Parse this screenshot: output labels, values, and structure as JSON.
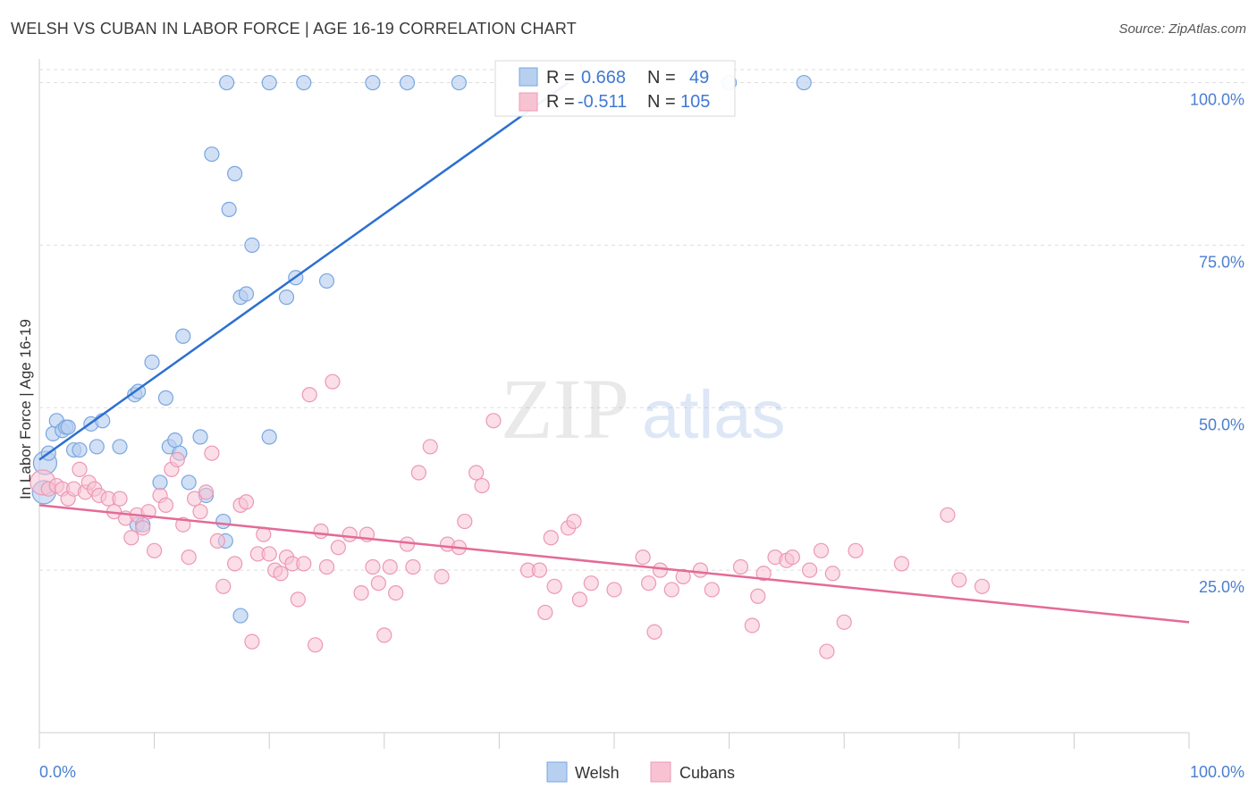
{
  "header": {
    "title": "WELSH VS CUBAN IN LABOR FORCE | AGE 16-19 CORRELATION CHART",
    "source": "Source: ZipAtlas.com"
  },
  "watermark": {
    "zip": "ZIP",
    "atlas": "atlas"
  },
  "colors": {
    "welsh_fill": "#b8d0f0",
    "welsh_stroke": "#7aa6e0",
    "welsh_line": "#2c6fd1",
    "cubans_fill": "#f7c3d3",
    "cubans_stroke": "#ec98b4",
    "cubans_line": "#e46a98",
    "axis_text": "#4a7fd0",
    "grid": "#dedede"
  },
  "legend": {
    "welsh": {
      "r_label": "R =",
      "r_value": "0.668",
      "n_label": "N =",
      "n_value": "49"
    },
    "cubans": {
      "r_label": "R =",
      "r_value": "-0.511",
      "n_label": "N =",
      "n_value": "105"
    }
  },
  "chart_data": {
    "type": "scatter",
    "title": "WELSH VS CUBAN IN LABOR FORCE | AGE 16-19 CORRELATION CHART",
    "xlabel": "",
    "ylabel": "In Labor Force | Age 16-19",
    "xlim": [
      0,
      100
    ],
    "ylim": [
      0,
      102
    ],
    "x_tick_labels": [
      "0.0%",
      "100.0%"
    ],
    "y_ticks": [
      25,
      50,
      75,
      100
    ],
    "y_tick_labels": [
      "25.0%",
      "50.0%",
      "75.0%",
      "100.0%"
    ],
    "grid": true,
    "legend_position": "top-center",
    "series": [
      {
        "name": "Welsh",
        "r": 0.668,
        "n": 49,
        "trend": {
          "x": [
            0,
            46
          ],
          "y": [
            42,
            100
          ]
        },
        "points": [
          [
            0.4,
            37
          ],
          [
            0.5,
            41.5
          ],
          [
            0.8,
            43
          ],
          [
            1.2,
            46
          ],
          [
            1.5,
            48
          ],
          [
            2.0,
            46.5
          ],
          [
            2.3,
            47
          ],
          [
            2.5,
            47
          ],
          [
            3.0,
            43.5
          ],
          [
            3.5,
            43.5
          ],
          [
            4.5,
            47.5
          ],
          [
            5.0,
            44
          ],
          [
            5.5,
            48
          ],
          [
            7.0,
            44
          ],
          [
            8.3,
            52
          ],
          [
            8.6,
            52.5
          ],
          [
            8.5,
            32
          ],
          [
            9.0,
            32
          ],
          [
            9.8,
            57
          ],
          [
            10.5,
            38.5
          ],
          [
            11.0,
            51.5
          ],
          [
            11.3,
            44
          ],
          [
            11.8,
            45
          ],
          [
            12.2,
            43
          ],
          [
            12.5,
            61
          ],
          [
            13.0,
            38.5
          ],
          [
            14.0,
            45.5
          ],
          [
            14.5,
            36.5
          ],
          [
            15.0,
            89
          ],
          [
            16.0,
            32.5
          ],
          [
            16.2,
            29.5
          ],
          [
            16.5,
            80.5
          ],
          [
            17.0,
            86
          ],
          [
            17.5,
            67
          ],
          [
            18.0,
            67.5
          ],
          [
            20.0,
            45.5
          ],
          [
            21.5,
            67
          ],
          [
            22.3,
            70
          ],
          [
            25.0,
            69.5
          ],
          [
            18.5,
            75
          ],
          [
            16.3,
            100
          ],
          [
            20.0,
            100
          ],
          [
            23.0,
            100
          ],
          [
            29.0,
            100
          ],
          [
            32.0,
            100
          ],
          [
            36.5,
            100
          ],
          [
            60.0,
            100
          ],
          [
            66.5,
            100
          ],
          [
            17.5,
            18
          ]
        ]
      },
      {
        "name": "Cubans",
        "r": -0.511,
        "n": 105,
        "trend": {
          "x": [
            0,
            100
          ],
          "y": [
            35,
            17
          ]
        },
        "points": [
          [
            0.3,
            38.5
          ],
          [
            0.8,
            37.5
          ],
          [
            1.5,
            38
          ],
          [
            2.0,
            37.5
          ],
          [
            2.5,
            36
          ],
          [
            3.0,
            37.5
          ],
          [
            3.5,
            40.5
          ],
          [
            4.0,
            37
          ],
          [
            4.3,
            38.5
          ],
          [
            4.8,
            37.5
          ],
          [
            5.2,
            36.5
          ],
          [
            6.0,
            36
          ],
          [
            6.5,
            34
          ],
          [
            7.0,
            36
          ],
          [
            7.5,
            33
          ],
          [
            8.0,
            30
          ],
          [
            8.5,
            33.5
          ],
          [
            9.0,
            31.5
          ],
          [
            9.5,
            34
          ],
          [
            10.0,
            28
          ],
          [
            10.5,
            36.5
          ],
          [
            11.0,
            35
          ],
          [
            11.5,
            40.5
          ],
          [
            12.0,
            42
          ],
          [
            12.5,
            32
          ],
          [
            13.0,
            27
          ],
          [
            13.5,
            36
          ],
          [
            14.0,
            34
          ],
          [
            14.5,
            37
          ],
          [
            15.0,
            43
          ],
          [
            15.5,
            29.5
          ],
          [
            16.0,
            22.5
          ],
          [
            17.0,
            26
          ],
          [
            17.5,
            35
          ],
          [
            18.0,
            35.5
          ],
          [
            18.5,
            14
          ],
          [
            19.0,
            27.5
          ],
          [
            19.5,
            30.5
          ],
          [
            20.0,
            27.5
          ],
          [
            20.5,
            25
          ],
          [
            21.0,
            24.5
          ],
          [
            21.5,
            27
          ],
          [
            22.0,
            26
          ],
          [
            22.5,
            20.5
          ],
          [
            23.0,
            26
          ],
          [
            23.5,
            52
          ],
          [
            24.0,
            13.5
          ],
          [
            24.5,
            31
          ],
          [
            25.0,
            25.5
          ],
          [
            25.5,
            54
          ],
          [
            26.0,
            28.5
          ],
          [
            27.0,
            30.5
          ],
          [
            28.0,
            21.5
          ],
          [
            28.5,
            30.5
          ],
          [
            29.0,
            25.5
          ],
          [
            29.5,
            23
          ],
          [
            30.0,
            15
          ],
          [
            30.5,
            25.5
          ],
          [
            31.0,
            21.5
          ],
          [
            32.0,
            29
          ],
          [
            32.5,
            25.5
          ],
          [
            33.0,
            40
          ],
          [
            34.0,
            44
          ],
          [
            35.0,
            24
          ],
          [
            35.5,
            29
          ],
          [
            36.5,
            28.5
          ],
          [
            37.0,
            32.5
          ],
          [
            38.0,
            40
          ],
          [
            38.5,
            38
          ],
          [
            39.5,
            48
          ],
          [
            42.5,
            25
          ],
          [
            43.5,
            25
          ],
          [
            44.5,
            30
          ],
          [
            44.0,
            18.5
          ],
          [
            44.8,
            22.5
          ],
          [
            46.0,
            31.5
          ],
          [
            46.5,
            32.5
          ],
          [
            47.0,
            20.5
          ],
          [
            48.0,
            23
          ],
          [
            50.0,
            22
          ],
          [
            52.5,
            27
          ],
          [
            53.0,
            23
          ],
          [
            53.5,
            15.5
          ],
          [
            54.0,
            25
          ],
          [
            55.0,
            22
          ],
          [
            56.0,
            24
          ],
          [
            57.5,
            25
          ],
          [
            58.5,
            22
          ],
          [
            61.0,
            25.5
          ],
          [
            62.0,
            16.5
          ],
          [
            62.5,
            21
          ],
          [
            63.0,
            24.5
          ],
          [
            64.0,
            27
          ],
          [
            65.0,
            26.5
          ],
          [
            65.5,
            27
          ],
          [
            67.0,
            25
          ],
          [
            68.0,
            28
          ],
          [
            68.5,
            12.5
          ],
          [
            69.0,
            24.5
          ],
          [
            70.0,
            17
          ],
          [
            71.0,
            28
          ],
          [
            75.0,
            26
          ],
          [
            79.0,
            33.5
          ],
          [
            80.0,
            23.5
          ],
          [
            82.0,
            22.5
          ]
        ]
      }
    ]
  },
  "bottom_legend": [
    "Welsh",
    "Cubans"
  ]
}
